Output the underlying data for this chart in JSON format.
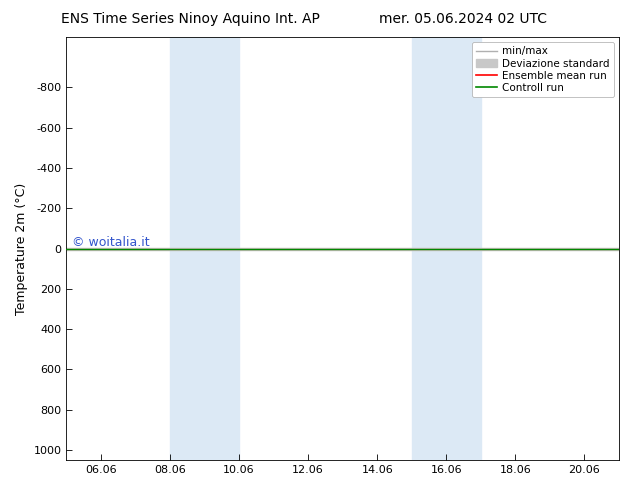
{
  "title_left": "ENS Time Series Ninoy Aquino Int. AP",
  "title_right": "mer. 05.06.2024 02 UTC",
  "ylabel": "Temperature 2m (°C)",
  "ylim_bottom": 1050,
  "ylim_top": -1050,
  "yticks": [
    -800,
    -600,
    -400,
    -200,
    0,
    200,
    400,
    600,
    800,
    1000
  ],
  "xlim": [
    0,
    16
  ],
  "xtick_labels": [
    "06.06",
    "08.06",
    "10.06",
    "12.06",
    "14.06",
    "16.06",
    "18.06",
    "20.06"
  ],
  "xtick_positions": [
    1,
    3,
    5,
    7,
    9,
    11,
    13,
    15
  ],
  "shaded_bands": [
    {
      "x_start": 3,
      "x_end": 5
    },
    {
      "x_start": 10,
      "x_end": 12
    }
  ],
  "shade_color": "#dce9f5",
  "line_y": 0,
  "ensemble_mean_color": "#ff0000",
  "control_run_color": "#008800",
  "minmax_color": "#b0b0b0",
  "std_color": "#c8c8c8",
  "watermark": "© woitalia.it",
  "watermark_color": "#3355cc",
  "background_color": "#ffffff",
  "font_size_title": 10,
  "font_size_axis": 9,
  "font_size_tick": 8,
  "font_size_legend": 7.5,
  "font_size_watermark": 9,
  "legend_items": [
    "min/max",
    "Deviazione standard",
    "Ensemble mean run",
    "Controll run"
  ]
}
